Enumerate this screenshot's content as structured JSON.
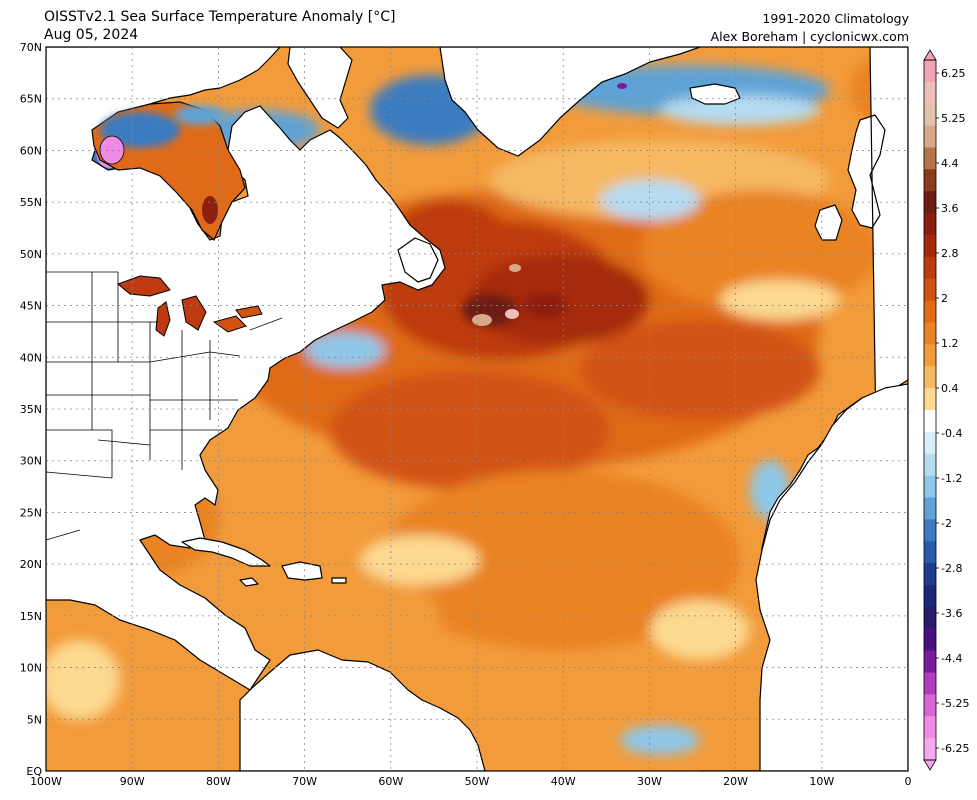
{
  "header": {
    "title_line1": "OISSTv2.1 Sea Surface Temperature Anomaly [°C]",
    "title_line2": "Aug 05, 2024",
    "credit_line1": "1991-2020 Climatology",
    "credit_line2": "Alex Boreham | cyclonicwx.com"
  },
  "map": {
    "lon_labels": [
      "100W",
      "90W",
      "80W",
      "70W",
      "60W",
      "50W",
      "40W",
      "30W",
      "20W",
      "10W",
      "0"
    ],
    "lat_labels": [
      "70N",
      "65N",
      "60N",
      "55N",
      "50N",
      "45N",
      "40N",
      "35N",
      "30N",
      "25N",
      "20N",
      "15N",
      "10N",
      "5N",
      "EQ"
    ],
    "land_color": "#ffffff",
    "coast_color": "#000000"
  },
  "colorbar": {
    "labels": [
      "6.25",
      "5.25",
      "4.4",
      "3.6",
      "2.8",
      "2",
      "1.2",
      "0.4",
      "-0.4",
      "-1.2",
      "-2",
      "-2.8",
      "-3.6",
      "-4.4",
      "-5.25",
      "-6.25"
    ],
    "colors_warm": [
      "#f4a3b4",
      "#efc0b8",
      "#e6c2aa",
      "#d9a889",
      "#b5754a",
      "#8a3c1c",
      "#6e1d12",
      "#8c1f10",
      "#a6290f",
      "#be3a10",
      "#d25213",
      "#e06a18",
      "#ea8324",
      "#f29b3b",
      "#f6b863",
      "#fcd991"
    ],
    "colors_cool": [
      "#ffffff",
      "#d8eef8",
      "#b5dcf1",
      "#8ec7e8",
      "#5ea3d6",
      "#3b7cc0",
      "#2a5aa9",
      "#1e3d8f",
      "#1a2a78",
      "#2b1a6a",
      "#4b1080",
      "#7a1a9c",
      "#b23bbf",
      "#d866d6",
      "#ee8be6",
      "#f4a9f0"
    ]
  }
}
